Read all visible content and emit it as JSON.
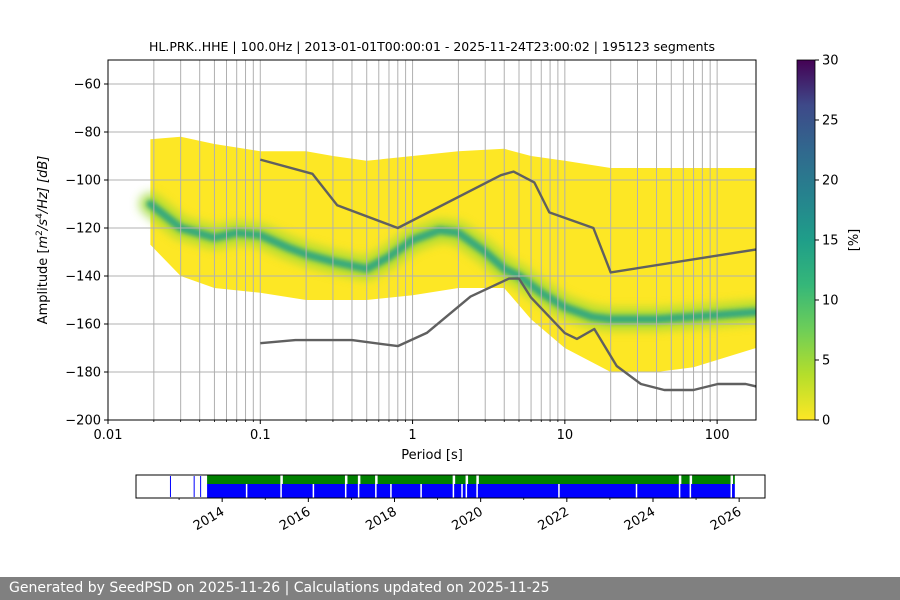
{
  "chart_data": [
    {
      "type": "heatmap",
      "title": "HL.PRK..HHE | 100.0Hz | 2013-01-01T00:00:01 - 2025-11-24T23:00:02 | 195123 segments",
      "xlabel": "Period [s]",
      "ylabel_parts": {
        "prefix": "Amplitude [",
        "m": "m",
        "sup1": "2",
        "mid": "/s",
        "sup2": "4",
        "suffix": "/Hz] [dB]"
      },
      "x_scale": "log",
      "xlim": [
        0.01,
        180
      ],
      "ylim": [
        -200,
        -50
      ],
      "x_ticks": [
        0.01,
        0.1,
        1,
        10,
        100
      ],
      "x_tick_labels": [
        "0.01",
        "0.1",
        "1",
        "10",
        "100"
      ],
      "y_ticks": [
        -60,
        -80,
        -100,
        -120,
        -140,
        -160,
        -180,
        -200
      ],
      "y_tick_labels": [
        "−60",
        "−80",
        "−100",
        "−120",
        "−140",
        "−160",
        "−180",
        "−200"
      ],
      "grid": true,
      "colorscale": "viridis_r (0 = yellow, 30 = dark purple)",
      "colorbar": {
        "label": "[%]",
        "min": 0,
        "max": 30,
        "ticks": [
          0,
          5,
          10,
          15,
          20,
          25,
          30
        ],
        "tick_labels": [
          "0",
          "5",
          "10",
          "15",
          "20",
          "25",
          "30"
        ]
      },
      "data_coverage_period_range_s": [
        0.019,
        180
      ],
      "envelope": {
        "period": [
          0.019,
          0.03,
          0.05,
          0.1,
          0.2,
          0.3,
          0.5,
          1.0,
          2.0,
          4.0,
          6.0,
          10,
          20,
          40,
          70,
          180
        ],
        "upper_db": [
          -83,
          -82,
          -85,
          -88,
          -88,
          -90,
          -92,
          -90,
          -88,
          -87,
          -90,
          -92,
          -95,
          -95,
          -95,
          -95
        ],
        "lower_db": [
          -127,
          -140,
          -145,
          -147,
          -150,
          -150,
          -150,
          -148,
          -145,
          -145,
          -158,
          -170,
          -180,
          -180,
          -178,
          -170
        ]
      },
      "mode_curve": {
        "name": "",
        "period": [
          0.019,
          0.03,
          0.05,
          0.07,
          0.1,
          0.15,
          0.2,
          0.3,
          0.5,
          0.7,
          1.0,
          1.5,
          2.0,
          3.0,
          4.0,
          5.0,
          7.0,
          10,
          15,
          20,
          40,
          70,
          180
        ],
        "db": [
          -110,
          -120,
          -124,
          -122,
          -123,
          -128,
          -131,
          -134,
          -137,
          -132,
          -125,
          -121,
          -122,
          -130,
          -137,
          -140,
          -147,
          -153,
          -157,
          -158,
          -158,
          -157,
          -155
        ]
      },
      "nhnm": {
        "name": "",
        "period": [
          0.1,
          0.22,
          0.32,
          0.8,
          3.8,
          4.6,
          6.3,
          7.9,
          15.4,
          20,
          354.8
        ],
        "db": [
          -91.5,
          -97.4,
          -110.5,
          -120.0,
          -98.0,
          -96.5,
          -101.0,
          -113.5,
          -120.0,
          -138.5,
          -126.0
        ]
      },
      "nlnm": {
        "name": "",
        "period": [
          0.1,
          0.17,
          0.4,
          0.8,
          1.24,
          2.4,
          4.3,
          5.0,
          6.0,
          10,
          12,
          15.6,
          21.9,
          31.6,
          45,
          70,
          101,
          154,
          180
        ],
        "db": [
          -168,
          -166.7,
          -166.7,
          -169.2,
          -163.7,
          -148.6,
          -141.1,
          -141.1,
          -149.0,
          -163.8,
          -166.2,
          -162.1,
          -177.5,
          -185.0,
          -187.5,
          -187.5,
          -185.0,
          -185.0,
          -186.0
        ]
      }
    },
    {
      "type": "timeline",
      "x_ticks": [
        2014,
        2016,
        2018,
        2020,
        2022,
        2024,
        2026
      ],
      "x_tick_labels": [
        "2014",
        "2016",
        "2018",
        "2020",
        "2022",
        "2024",
        "2026"
      ],
      "xlim": [
        2012.0,
        2026.6
      ],
      "top_band_color": "#008000",
      "bottom_band_color": "#0000ff",
      "coverage_start": 2013.65,
      "coverage_end": 2025.9,
      "early_ticks": [
        2012.8,
        2013.5,
        2013.35
      ],
      "gaps_top": [
        2015.35,
        2016.85,
        2017.15,
        2017.55,
        2019.35,
        2019.65,
        2019.9,
        2024.6,
        2024.85,
        2025.8
      ],
      "gaps_bottom": [
        2014.55,
        2015.35,
        2016.1,
        2016.85,
        2017.15,
        2017.55,
        2017.9,
        2018.6,
        2019.35,
        2019.55,
        2019.65,
        2019.9,
        2021.8,
        2023.6,
        2024.6,
        2024.85,
        2025.8
      ]
    }
  ],
  "footer": {
    "text": "Generated by SeedPSD on 2025-11-26 | Calculations updated on 2025-11-25"
  },
  "colors": {
    "model_line": "#606060",
    "grid": "#b0b0b0",
    "footer_bg": "#808080",
    "footer_text": "#ffffff"
  }
}
